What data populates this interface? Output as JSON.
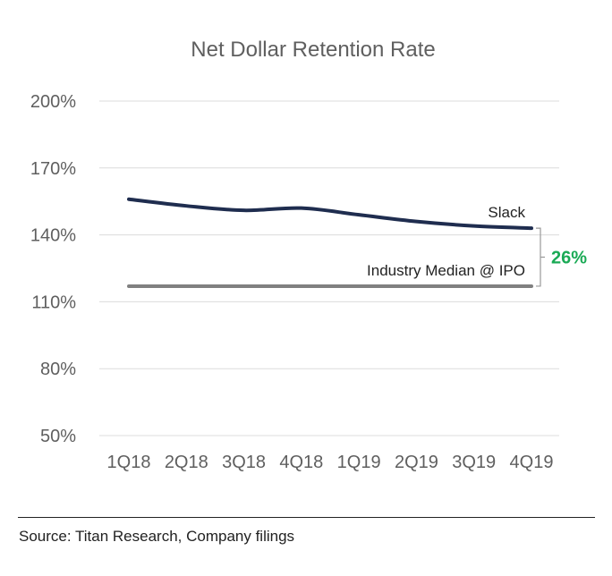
{
  "chart_data": {
    "type": "line",
    "title": "Net Dollar Retention Rate",
    "categories": [
      "1Q18",
      "2Q18",
      "3Q18",
      "4Q18",
      "1Q19",
      "2Q19",
      "3Q19",
      "4Q19"
    ],
    "y_ticks": [
      "200%",
      "170%",
      "140%",
      "110%",
      "80%",
      "50%"
    ],
    "ylim": [
      50,
      200
    ],
    "grid": true,
    "series": [
      {
        "name": "Slack",
        "values": [
          156,
          153,
          151,
          152,
          149,
          146,
          144,
          143
        ],
        "color": "#1f2d4f"
      },
      {
        "name": "Industry Median @ IPO",
        "values": [
          117,
          117,
          117,
          117,
          117,
          117,
          117,
          117
        ],
        "color": "#808080"
      }
    ],
    "annotation": {
      "label": "26%",
      "color": "#1aaa55"
    }
  },
  "footer": {
    "source": "Source: Titan Research, Company filings"
  }
}
